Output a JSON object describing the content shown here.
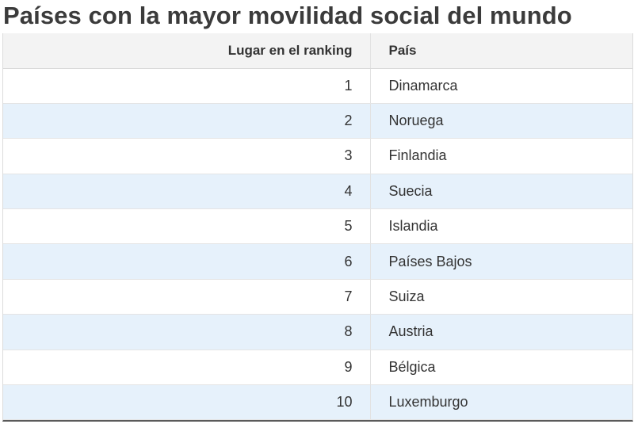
{
  "title": "Países con la mayor movilidad social del mundo",
  "table": {
    "headers": {
      "rank": "Lugar en el ranking",
      "country": "País"
    },
    "rows": [
      {
        "rank": "1",
        "country": "Dinamarca"
      },
      {
        "rank": "2",
        "country": "Noruega"
      },
      {
        "rank": "3",
        "country": "Finlandia"
      },
      {
        "rank": "4",
        "country": "Suecia"
      },
      {
        "rank": "5",
        "country": "Islandia"
      },
      {
        "rank": "6",
        "country": "Países Bajos"
      },
      {
        "rank": "7",
        "country": "Suiza"
      },
      {
        "rank": "8",
        "country": "Austria"
      },
      {
        "rank": "9",
        "country": "Bélgica"
      },
      {
        "rank": "10",
        "country": "Luxemburgo"
      }
    ]
  },
  "colors": {
    "stripe_row": "#e6f1fb",
    "header_bg": "#f3f3f3",
    "title_text": "#3b3b3b"
  }
}
